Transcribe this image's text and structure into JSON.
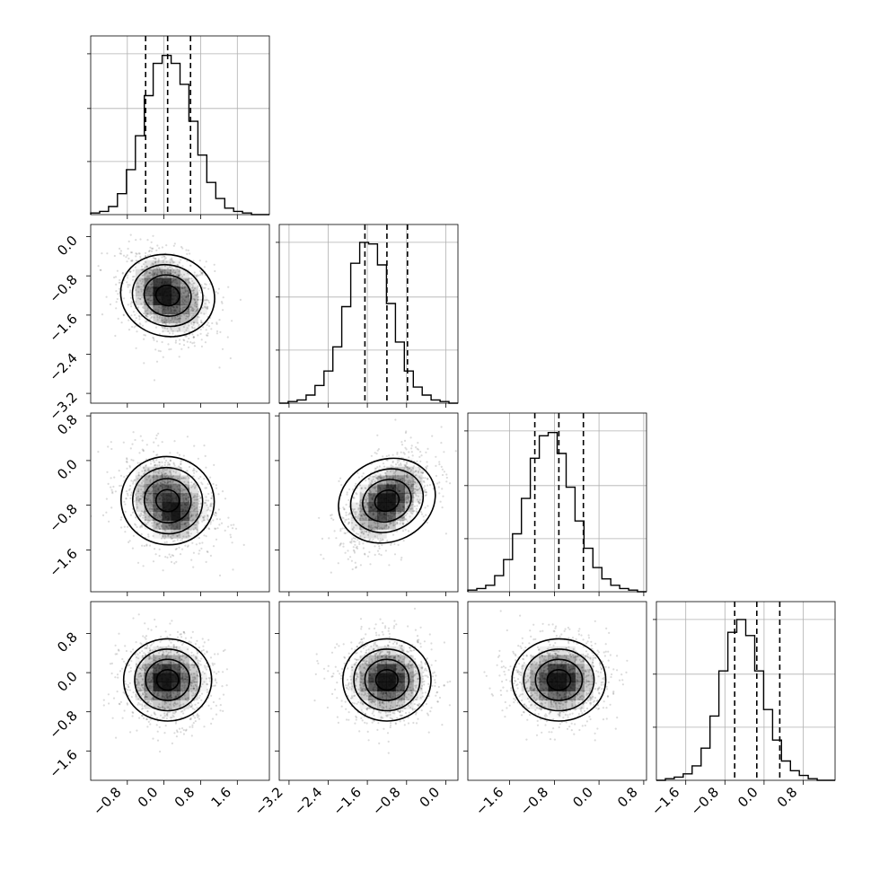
{
  "chart_data": {
    "type": "corner",
    "dims": 4,
    "grid": true,
    "colors": {
      "ink": "#000000",
      "grid": "#b0b0b0",
      "density": "#000000",
      "points": "#000000"
    },
    "axes": [
      {
        "range": [
          -1.6,
          2.3
        ],
        "ticks": [
          -0.8,
          0.0,
          0.8,
          1.6
        ],
        "tick_labels": [
          "−0.8",
          "0.0",
          "0.8",
          "1.6"
        ],
        "center": 0.08,
        "sx": 0.48,
        "sy": 0.48,
        "rho": -0.3,
        "quantiles": [
          -0.4,
          0.08,
          0.58
        ]
      },
      {
        "range": [
          -3.4,
          0.25
        ],
        "ticks": [
          -3.2,
          -2.4,
          -1.6,
          -0.8,
          0.0
        ],
        "tick_labels": [
          "−3.2",
          "−2.4",
          "−1.6",
          "−0.8",
          "0.0"
        ],
        "center": -1.2,
        "sx": 0.45,
        "sy": 0.45,
        "rho": 0.45,
        "quantiles": [
          -1.65,
          -1.2,
          -0.78
        ]
      },
      {
        "range": [
          -2.35,
          0.85
        ],
        "ticks": [
          -1.6,
          -0.8,
          0.0,
          0.8
        ],
        "tick_labels": [
          "−1.6",
          "−0.8",
          "0.0",
          "0.8"
        ],
        "center": -0.72,
        "sx": 0.42,
        "sy": 0.42,
        "rho": 0.0,
        "quantiles": [
          -1.15,
          -0.72,
          -0.28
        ]
      },
      {
        "range": [
          -2.2,
          1.45
        ],
        "ticks": [
          -1.6,
          -0.8,
          0.0,
          0.8
        ],
        "tick_labels": [
          "−1.6",
          "−0.8",
          "0.0",
          "0.8"
        ],
        "center": -0.15,
        "sx": 0.42,
        "sy": 0.42,
        "rho": 0.0,
        "quantiles": [
          -0.6,
          -0.15,
          0.32
        ]
      }
    ],
    "diagonal_histograms": [
      {
        "axis": 0,
        "bins": 20,
        "counts": [
          0.01,
          0.02,
          0.05,
          0.13,
          0.28,
          0.49,
          0.74,
          0.94,
          0.99,
          0.94,
          0.81,
          0.58,
          0.37,
          0.2,
          0.1,
          0.04,
          0.02,
          0.01,
          0.0,
          0.0
        ]
      },
      {
        "axis": 1,
        "bins": 20,
        "counts": [
          0.0,
          0.01,
          0.02,
          0.05,
          0.11,
          0.2,
          0.35,
          0.6,
          0.87,
          1.0,
          0.99,
          0.86,
          0.62,
          0.38,
          0.2,
          0.1,
          0.05,
          0.02,
          0.01,
          0.0
        ]
      },
      {
        "axis": 2,
        "bins": 20,
        "counts": [
          0.01,
          0.02,
          0.04,
          0.1,
          0.2,
          0.36,
          0.58,
          0.83,
          0.97,
          0.99,
          0.86,
          0.65,
          0.44,
          0.27,
          0.15,
          0.08,
          0.04,
          0.02,
          0.01,
          0.0
        ]
      },
      {
        "axis": 3,
        "bins": 20,
        "counts": [
          0.0,
          0.01,
          0.02,
          0.04,
          0.09,
          0.2,
          0.4,
          0.68,
          0.92,
          1.0,
          0.9,
          0.68,
          0.44,
          0.25,
          0.12,
          0.06,
          0.03,
          0.01,
          0.0,
          0.0
        ]
      }
    ],
    "panels_2d": [
      {
        "row": 1,
        "col": 0,
        "peak": [
          -0.05,
          -1.15
        ]
      },
      {
        "row": 2,
        "col": 0,
        "peak": [
          0.25,
          -1.0
        ]
      },
      {
        "row": 2,
        "col": 1,
        "peak": [
          -1.2,
          -0.75
        ]
      },
      {
        "row": 3,
        "col": 0,
        "peak": [
          0.0,
          -0.15
        ]
      },
      {
        "row": 3,
        "col": 1,
        "peak": [
          -1.2,
          -0.15
        ]
      },
      {
        "row": 3,
        "col": 2,
        "peak": [
          -0.72,
          -0.15
        ]
      }
    ]
  }
}
